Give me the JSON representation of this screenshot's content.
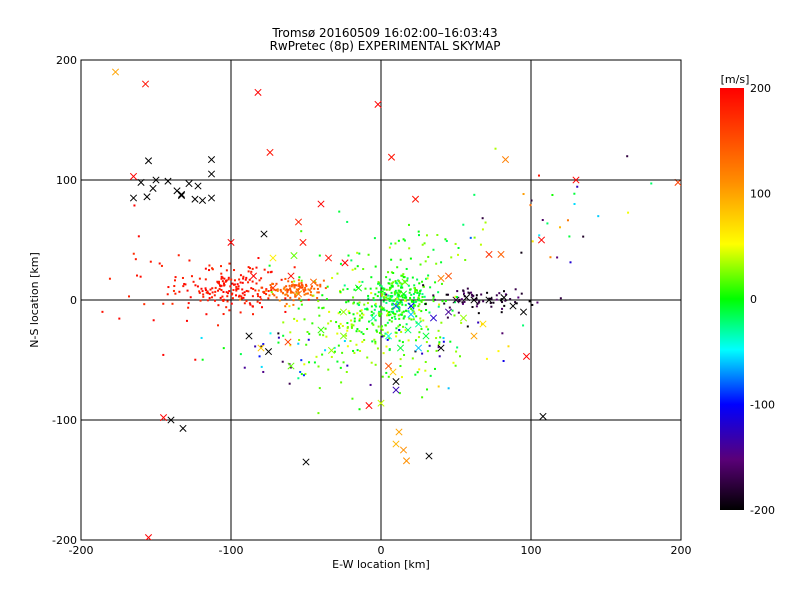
{
  "chart_data": {
    "type": "scatter",
    "title": "Tromsø 20160509 16:02:00–16:03:43",
    "subtitle": "RwPretec (8p) EXPERIMENTAL SKYMAP",
    "xlabel": "E-W location [km]",
    "ylabel": "N-S location [km]",
    "xlim": [
      -200,
      200
    ],
    "ylim": [
      -200,
      200
    ],
    "xticks": [
      "-200",
      "-100",
      "0",
      "100",
      "200"
    ],
    "yticks": [
      "-200",
      "-100",
      "0",
      "100",
      "200"
    ],
    "grid_lines": {
      "x": [
        -100,
        0,
        100
      ],
      "y": [
        -100,
        0,
        100
      ]
    },
    "colorbar": {
      "label": "[m/s]",
      "range": [
        -200,
        200
      ],
      "ticks": [
        "-200",
        "-100",
        "0",
        "100",
        "200"
      ],
      "colormap": [
        "#000000",
        "#5a0078",
        "#0000ff",
        "#00ffff",
        "#00ff00",
        "#ffff00",
        "#ff8c00",
        "#ff0000"
      ]
    },
    "marker_legend_note": "small dots and larger x crosses",
    "series": [
      {
        "marker": "x",
        "points": [
          [
            -177,
            190,
            100
          ],
          [
            -157,
            180,
            190
          ],
          [
            -82,
            173,
            200
          ],
          [
            -2,
            163,
            200
          ],
          [
            -74,
            123,
            190
          ],
          [
            7,
            119,
            190
          ],
          [
            83,
            117,
            120
          ],
          [
            -165,
            103,
            200
          ],
          [
            -155,
            116,
            -200
          ],
          [
            -160,
            98,
            -200
          ],
          [
            -150,
            100,
            -200
          ],
          [
            -152,
            93,
            -200
          ],
          [
            -142,
            99,
            -200
          ],
          [
            -133,
            88,
            -200
          ],
          [
            -128,
            97,
            -200
          ],
          [
            -122,
            95,
            -200
          ],
          [
            -113,
            117,
            -200
          ],
          [
            -113,
            105,
            -200
          ],
          [
            -124,
            84,
            -200
          ],
          [
            -119,
            83,
            -200
          ],
          [
            -113,
            85,
            -200
          ],
          [
            -165,
            85,
            -200
          ],
          [
            -156,
            86,
            -200
          ],
          [
            -136,
            91,
            -200
          ],
          [
            -133,
            87,
            -200
          ],
          [
            -100,
            48,
            200
          ],
          [
            -55,
            65,
            180
          ],
          [
            -52,
            48,
            190
          ],
          [
            -58,
            37,
            20
          ],
          [
            -78,
            55,
            -200
          ],
          [
            -40,
            80,
            200
          ],
          [
            -72,
            35,
            60
          ],
          [
            -35,
            35,
            190
          ],
          [
            -24,
            31,
            200
          ],
          [
            23,
            84,
            190
          ],
          [
            -85,
            20,
            200
          ],
          [
            -60,
            20,
            190
          ],
          [
            -72,
            10,
            170
          ],
          [
            -45,
            15,
            140
          ],
          [
            -55,
            5,
            130
          ],
          [
            72,
            38,
            170
          ],
          [
            80,
            38,
            140
          ],
          [
            40,
            18,
            120
          ],
          [
            45,
            20,
            150
          ],
          [
            16,
            15,
            20
          ],
          [
            -88,
            -30,
            -200
          ],
          [
            -75,
            -43,
            -200
          ],
          [
            -62,
            -35,
            160
          ],
          [
            -80,
            -40,
            80
          ],
          [
            -60,
            -55,
            20
          ],
          [
            -40,
            -25,
            10
          ],
          [
            -33,
            -42,
            30
          ],
          [
            -25,
            -30,
            25
          ],
          [
            5,
            -55,
            150
          ],
          [
            8,
            -60,
            80
          ],
          [
            13,
            -40,
            -10
          ],
          [
            10,
            -68,
            -200
          ],
          [
            10,
            -75,
            -130
          ],
          [
            0,
            -86,
            40
          ],
          [
            -8,
            -88,
            200
          ],
          [
            -140,
            -100,
            -200
          ],
          [
            -145,
            -98,
            200
          ],
          [
            -132,
            -107,
            -200
          ],
          [
            -50,
            -135,
            -200
          ],
          [
            -155,
            -198,
            200
          ],
          [
            20,
            -12,
            -60
          ],
          [
            25,
            -20,
            -30
          ],
          [
            18,
            -25,
            -20
          ],
          [
            30,
            -30,
            -10
          ],
          [
            40,
            -40,
            -200
          ],
          [
            55,
            -15,
            30
          ],
          [
            62,
            -30,
            100
          ],
          [
            68,
            -20,
            70
          ],
          [
            50,
            0,
            -180
          ],
          [
            57,
            2,
            -200
          ],
          [
            62,
            0,
            -200
          ],
          [
            72,
            0,
            -200
          ],
          [
            82,
            2,
            -200
          ],
          [
            88,
            -5,
            -200
          ],
          [
            95,
            -10,
            -200
          ],
          [
            20,
            -5,
            -100
          ],
          [
            35,
            -15,
            -120
          ],
          [
            45,
            -10,
            -140
          ],
          [
            10,
            -5,
            -80
          ],
          [
            15,
            5,
            0
          ],
          [
            -15,
            10,
            0
          ],
          [
            -25,
            -10,
            30
          ],
          [
            -5,
            -15,
            -30
          ],
          [
            5,
            -30,
            -40
          ],
          [
            25,
            -40,
            -60
          ],
          [
            97,
            -47,
            200
          ],
          [
            108,
            -97,
            -200
          ],
          [
            130,
            100,
            200
          ],
          [
            107,
            50,
            200
          ],
          [
            198,
            98,
            160
          ],
          [
            32,
            -130,
            -200
          ],
          [
            15,
            -125,
            110
          ],
          [
            17,
            -134,
            110
          ],
          [
            10,
            -120,
            90
          ],
          [
            12,
            -110,
            100
          ]
        ]
      },
      {
        "marker": "dot",
        "clusters": [
          {
            "center": [
              -100,
              10
            ],
            "spread": [
              18,
              9
            ],
            "n": 180,
            "vmin": 175,
            "vmax": 200
          },
          {
            "center": [
              -60,
              8
            ],
            "spread": [
              10,
              5
            ],
            "n": 110,
            "vmin": 115,
            "vmax": 160
          },
          {
            "center": [
              10,
              2
            ],
            "spread": [
              12,
              10
            ],
            "n": 260,
            "vmin": -30,
            "vmax": 25
          },
          {
            "center": [
              -10,
              -20
            ],
            "spread": [
              28,
              22
            ],
            "n": 240,
            "vmin": -10,
            "vmax": 50
          },
          {
            "center": [
              20,
              40
            ],
            "spread": [
              30,
              15
            ],
            "n": 50,
            "vmin": -20,
            "vmax": 40
          },
          {
            "center": [
              70,
              0
            ],
            "spread": [
              20,
              5
            ],
            "n": 70,
            "vmin": -200,
            "vmax": -150
          },
          {
            "center": [
              -150,
              10
            ],
            "spread": [
              25,
              25
            ],
            "n": 30,
            "vmin": 170,
            "vmax": 200
          },
          {
            "center": [
              120,
              70
            ],
            "spread": [
              40,
              25
            ],
            "n": 30,
            "vmin": -200,
            "vmax": 200
          },
          {
            "center": [
              -60,
              -45
            ],
            "spread": [
              25,
              15
            ],
            "n": 30,
            "vmin": -200,
            "vmax": 60
          },
          {
            "center": [
              40,
              -35
            ],
            "spread": [
              25,
              15
            ],
            "n": 40,
            "vmin": -200,
            "vmax": 80
          }
        ]
      }
    ]
  }
}
